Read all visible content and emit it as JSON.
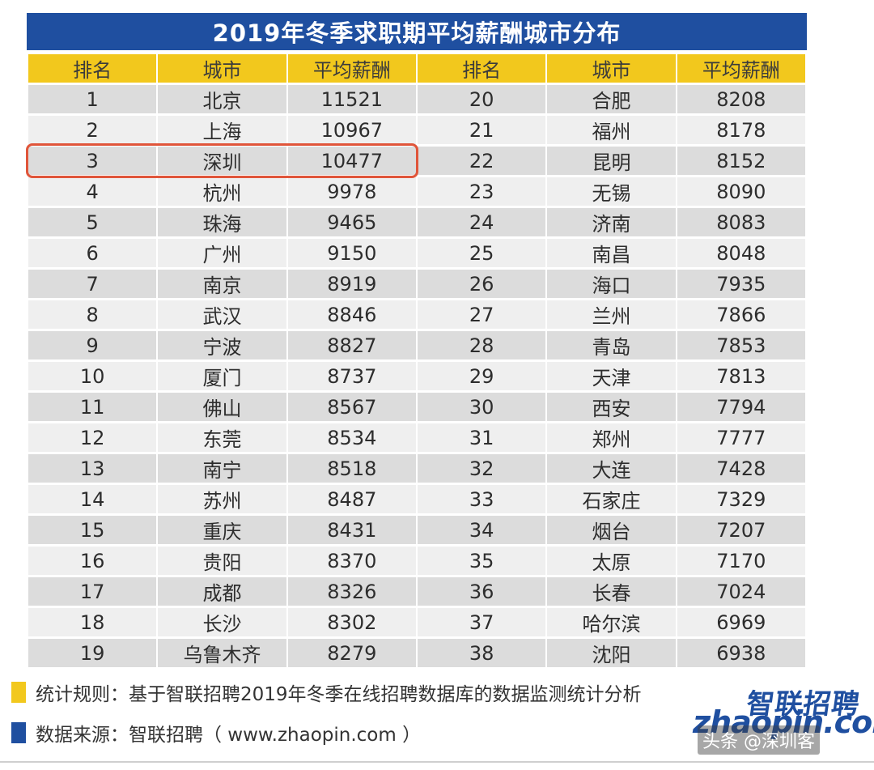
{
  "chart_data": {
    "type": "table",
    "title": "2019年冬季求职期平均薪酬城市分布",
    "columns": [
      "排名",
      "城市",
      "平均薪酬",
      "排名",
      "城市",
      "平均薪酬"
    ],
    "rows": [
      {
        "left": {
          "rank": "1",
          "city": "北京",
          "salary": "11521"
        },
        "right": {
          "rank": "20",
          "city": "合肥",
          "salary": "8208"
        }
      },
      {
        "left": {
          "rank": "2",
          "city": "上海",
          "salary": "10967"
        },
        "right": {
          "rank": "21",
          "city": "福州",
          "salary": "8178"
        }
      },
      {
        "left": {
          "rank": "3",
          "city": "深圳",
          "salary": "10477"
        },
        "right": {
          "rank": "22",
          "city": "昆明",
          "salary": "8152"
        }
      },
      {
        "left": {
          "rank": "4",
          "city": "杭州",
          "salary": "9978"
        },
        "right": {
          "rank": "23",
          "city": "无锡",
          "salary": "8090"
        }
      },
      {
        "left": {
          "rank": "5",
          "city": "珠海",
          "salary": "9465"
        },
        "right": {
          "rank": "24",
          "city": "济南",
          "salary": "8083"
        }
      },
      {
        "left": {
          "rank": "6",
          "city": "广州",
          "salary": "9150"
        },
        "right": {
          "rank": "25",
          "city": "南昌",
          "salary": "8048"
        }
      },
      {
        "left": {
          "rank": "7",
          "city": "南京",
          "salary": "8919"
        },
        "right": {
          "rank": "26",
          "city": "海口",
          "salary": "7935"
        }
      },
      {
        "left": {
          "rank": "8",
          "city": "武汉",
          "salary": "8846"
        },
        "right": {
          "rank": "27",
          "city": "兰州",
          "salary": "7866"
        }
      },
      {
        "left": {
          "rank": "9",
          "city": "宁波",
          "salary": "8827"
        },
        "right": {
          "rank": "28",
          "city": "青岛",
          "salary": "7853"
        }
      },
      {
        "left": {
          "rank": "10",
          "city": "厦门",
          "salary": "8737"
        },
        "right": {
          "rank": "29",
          "city": "天津",
          "salary": "7813"
        }
      },
      {
        "left": {
          "rank": "11",
          "city": "佛山",
          "salary": "8567"
        },
        "right": {
          "rank": "30",
          "city": "西安",
          "salary": "7794"
        }
      },
      {
        "left": {
          "rank": "12",
          "city": "东莞",
          "salary": "8534"
        },
        "right": {
          "rank": "31",
          "city": "郑州",
          "salary": "7777"
        }
      },
      {
        "left": {
          "rank": "13",
          "city": "南宁",
          "salary": "8518"
        },
        "right": {
          "rank": "32",
          "city": "大连",
          "salary": "7428"
        }
      },
      {
        "left": {
          "rank": "14",
          "city": "苏州",
          "salary": "8487"
        },
        "right": {
          "rank": "33",
          "city": "石家庄",
          "salary": "7329"
        }
      },
      {
        "left": {
          "rank": "15",
          "city": "重庆",
          "salary": "8431"
        },
        "right": {
          "rank": "34",
          "city": "烟台",
          "salary": "7207"
        }
      },
      {
        "left": {
          "rank": "16",
          "city": "贵阳",
          "salary": "8370"
        },
        "right": {
          "rank": "35",
          "city": "太原",
          "salary": "7170"
        }
      },
      {
        "left": {
          "rank": "17",
          "city": "成都",
          "salary": "8326"
        },
        "right": {
          "rank": "36",
          "city": "长春",
          "salary": "7024"
        }
      },
      {
        "left": {
          "rank": "18",
          "city": "长沙",
          "salary": "8302"
        },
        "right": {
          "rank": "37",
          "city": "哈尔滨",
          "salary": "6969"
        }
      },
      {
        "left": {
          "rank": "19",
          "city": "乌鲁木齐",
          "salary": "8279"
        },
        "right": {
          "rank": "38",
          "city": "沈阳",
          "salary": "6938"
        }
      }
    ],
    "highlighted_row": 2,
    "colors": {
      "title_bg": "#1f4fa0",
      "header_bg": "#f2c81d",
      "highlight": "#e0553a"
    }
  },
  "notes": {
    "rule": "统计规则：基于智联招聘2019年冬季在线招聘数据库的数据监测统计分析",
    "source": "数据来源：智联招聘（ www.zhaopin.com ）"
  },
  "logo": {
    "cn": "智联招聘",
    "en": "zhaopin.com"
  },
  "watermark": "头条 @深圳客"
}
